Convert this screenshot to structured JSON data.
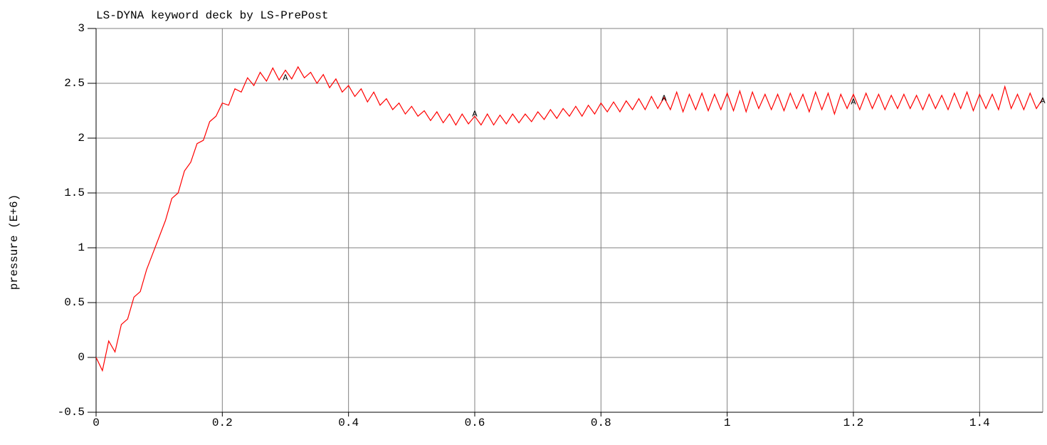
{
  "chart_data": {
    "type": "line",
    "title": "LS-DYNA keyword deck by LS-PrePost",
    "y_label": "pressure (E+6)",
    "xlim": [
      0,
      1.5
    ],
    "xticks": [
      0,
      0.2,
      0.4,
      0.6,
      0.8,
      1,
      1.2,
      1.4
    ],
    "ylim": [
      -0.5,
      3
    ],
    "yticks": [
      -0.5,
      0,
      0.5,
      1,
      1.5,
      2,
      2.5,
      3
    ],
    "grid": true,
    "series": [
      {
        "color": "#ff0000",
        "label": "A",
        "marker_x": [
          0.3,
          0.6,
          0.9,
          1.2,
          1.5
        ],
        "marker_values": [
          2.55,
          2.22,
          2.36,
          2.33,
          2.34
        ],
        "x": [
          0,
          0.01,
          0.02,
          0.03,
          0.04,
          0.05,
          0.06,
          0.07,
          0.08,
          0.09,
          0.1,
          0.11,
          0.12,
          0.13,
          0.14,
          0.15,
          0.16,
          0.17,
          0.18,
          0.19,
          0.2,
          0.21,
          0.22,
          0.23,
          0.24,
          0.25,
          0.26,
          0.27,
          0.28,
          0.29,
          0.3,
          0.31,
          0.32,
          0.33,
          0.34,
          0.35,
          0.36,
          0.37,
          0.38,
          0.39,
          0.4,
          0.41,
          0.42,
          0.43,
          0.44,
          0.45,
          0.46,
          0.47,
          0.48,
          0.49,
          0.5,
          0.51,
          0.52,
          0.53,
          0.54,
          0.55,
          0.56,
          0.57,
          0.58,
          0.59,
          0.6,
          0.61,
          0.62,
          0.63,
          0.64,
          0.65,
          0.66,
          0.67,
          0.68,
          0.69,
          0.7,
          0.71,
          0.72,
          0.73,
          0.74,
          0.75,
          0.76,
          0.77,
          0.78,
          0.79,
          0.8,
          0.81,
          0.82,
          0.83,
          0.84,
          0.85,
          0.86,
          0.87,
          0.88,
          0.89,
          0.9,
          0.91,
          0.92,
          0.93,
          0.94,
          0.95,
          0.96,
          0.97,
          0.98,
          0.99,
          1,
          1.01,
          1.02,
          1.03,
          1.04,
          1.05,
          1.06,
          1.07,
          1.08,
          1.09,
          1.1,
          1.11,
          1.12,
          1.13,
          1.14,
          1.15,
          1.16,
          1.17,
          1.18,
          1.19,
          1.2,
          1.21,
          1.22,
          1.23,
          1.24,
          1.25,
          1.26,
          1.27,
          1.28,
          1.29,
          1.3,
          1.31,
          1.32,
          1.33,
          1.34,
          1.35,
          1.36,
          1.37,
          1.38,
          1.39,
          1.4,
          1.41,
          1.42,
          1.43,
          1.44,
          1.45,
          1.46,
          1.47,
          1.48,
          1.49,
          1.5
        ],
        "values": [
          0,
          -0.12,
          0.15,
          0.05,
          0.3,
          0.35,
          0.55,
          0.6,
          0.8,
          0.95,
          1.1,
          1.25,
          1.45,
          1.5,
          1.7,
          1.78,
          1.95,
          1.98,
          2.15,
          2.2,
          2.32,
          2.3,
          2.45,
          2.42,
          2.55,
          2.48,
          2.6,
          2.52,
          2.64,
          2.53,
          2.62,
          2.54,
          2.65,
          2.55,
          2.6,
          2.5,
          2.58,
          2.46,
          2.54,
          2.42,
          2.48,
          2.38,
          2.45,
          2.33,
          2.42,
          2.3,
          2.36,
          2.26,
          2.32,
          2.22,
          2.29,
          2.2,
          2.25,
          2.16,
          2.24,
          2.14,
          2.22,
          2.12,
          2.22,
          2.13,
          2.2,
          2.12,
          2.22,
          2.12,
          2.21,
          2.13,
          2.22,
          2.14,
          2.22,
          2.15,
          2.24,
          2.17,
          2.26,
          2.18,
          2.27,
          2.2,
          2.29,
          2.2,
          2.3,
          2.22,
          2.32,
          2.24,
          2.33,
          2.24,
          2.34,
          2.26,
          2.36,
          2.26,
          2.38,
          2.27,
          2.37,
          2.26,
          2.42,
          2.24,
          2.4,
          2.26,
          2.41,
          2.25,
          2.4,
          2.26,
          2.41,
          2.25,
          2.43,
          2.24,
          2.42,
          2.27,
          2.4,
          2.26,
          2.4,
          2.25,
          2.41,
          2.27,
          2.4,
          2.24,
          2.42,
          2.26,
          2.41,
          2.22,
          2.4,
          2.27,
          2.4,
          2.26,
          2.41,
          2.27,
          2.4,
          2.26,
          2.39,
          2.27,
          2.4,
          2.27,
          2.39,
          2.26,
          2.4,
          2.27,
          2.39,
          2.26,
          2.41,
          2.27,
          2.42,
          2.25,
          2.4,
          2.27,
          2.4,
          2.26,
          2.47,
          2.27,
          2.4,
          2.26,
          2.41,
          2.27,
          2.36
        ]
      }
    ]
  }
}
